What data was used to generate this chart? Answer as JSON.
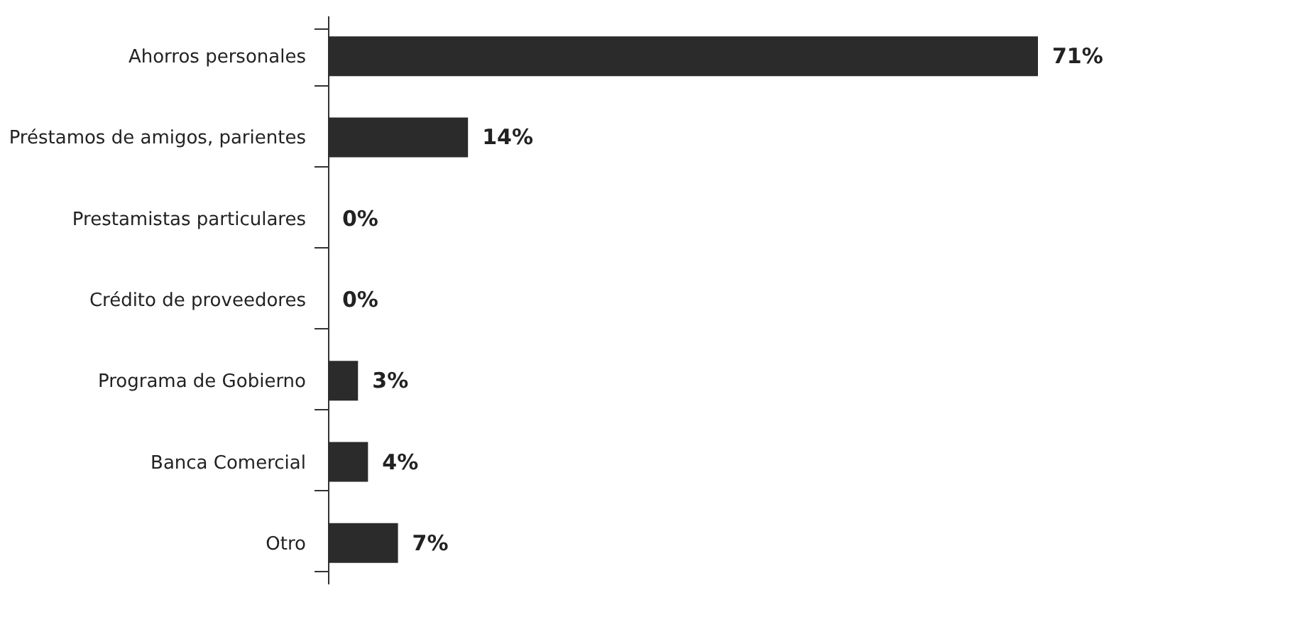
{
  "chart_data": {
    "type": "bar",
    "orientation": "horizontal",
    "categories": [
      "Ahorros personales",
      "Préstamos de amigos, parientes",
      "Prestamistas particulares",
      "Crédito de proveedores",
      "Programa de Gobierno",
      "Banca Comercial",
      "Otro"
    ],
    "values": [
      71,
      14,
      0,
      0,
      3,
      4,
      7
    ],
    "value_labels": [
      "71%",
      "14%",
      "0%",
      "0%",
      "3%",
      "4%",
      "7%"
    ],
    "color": "#2b2b2b",
    "tick_labels": "y",
    "grid": false
  }
}
